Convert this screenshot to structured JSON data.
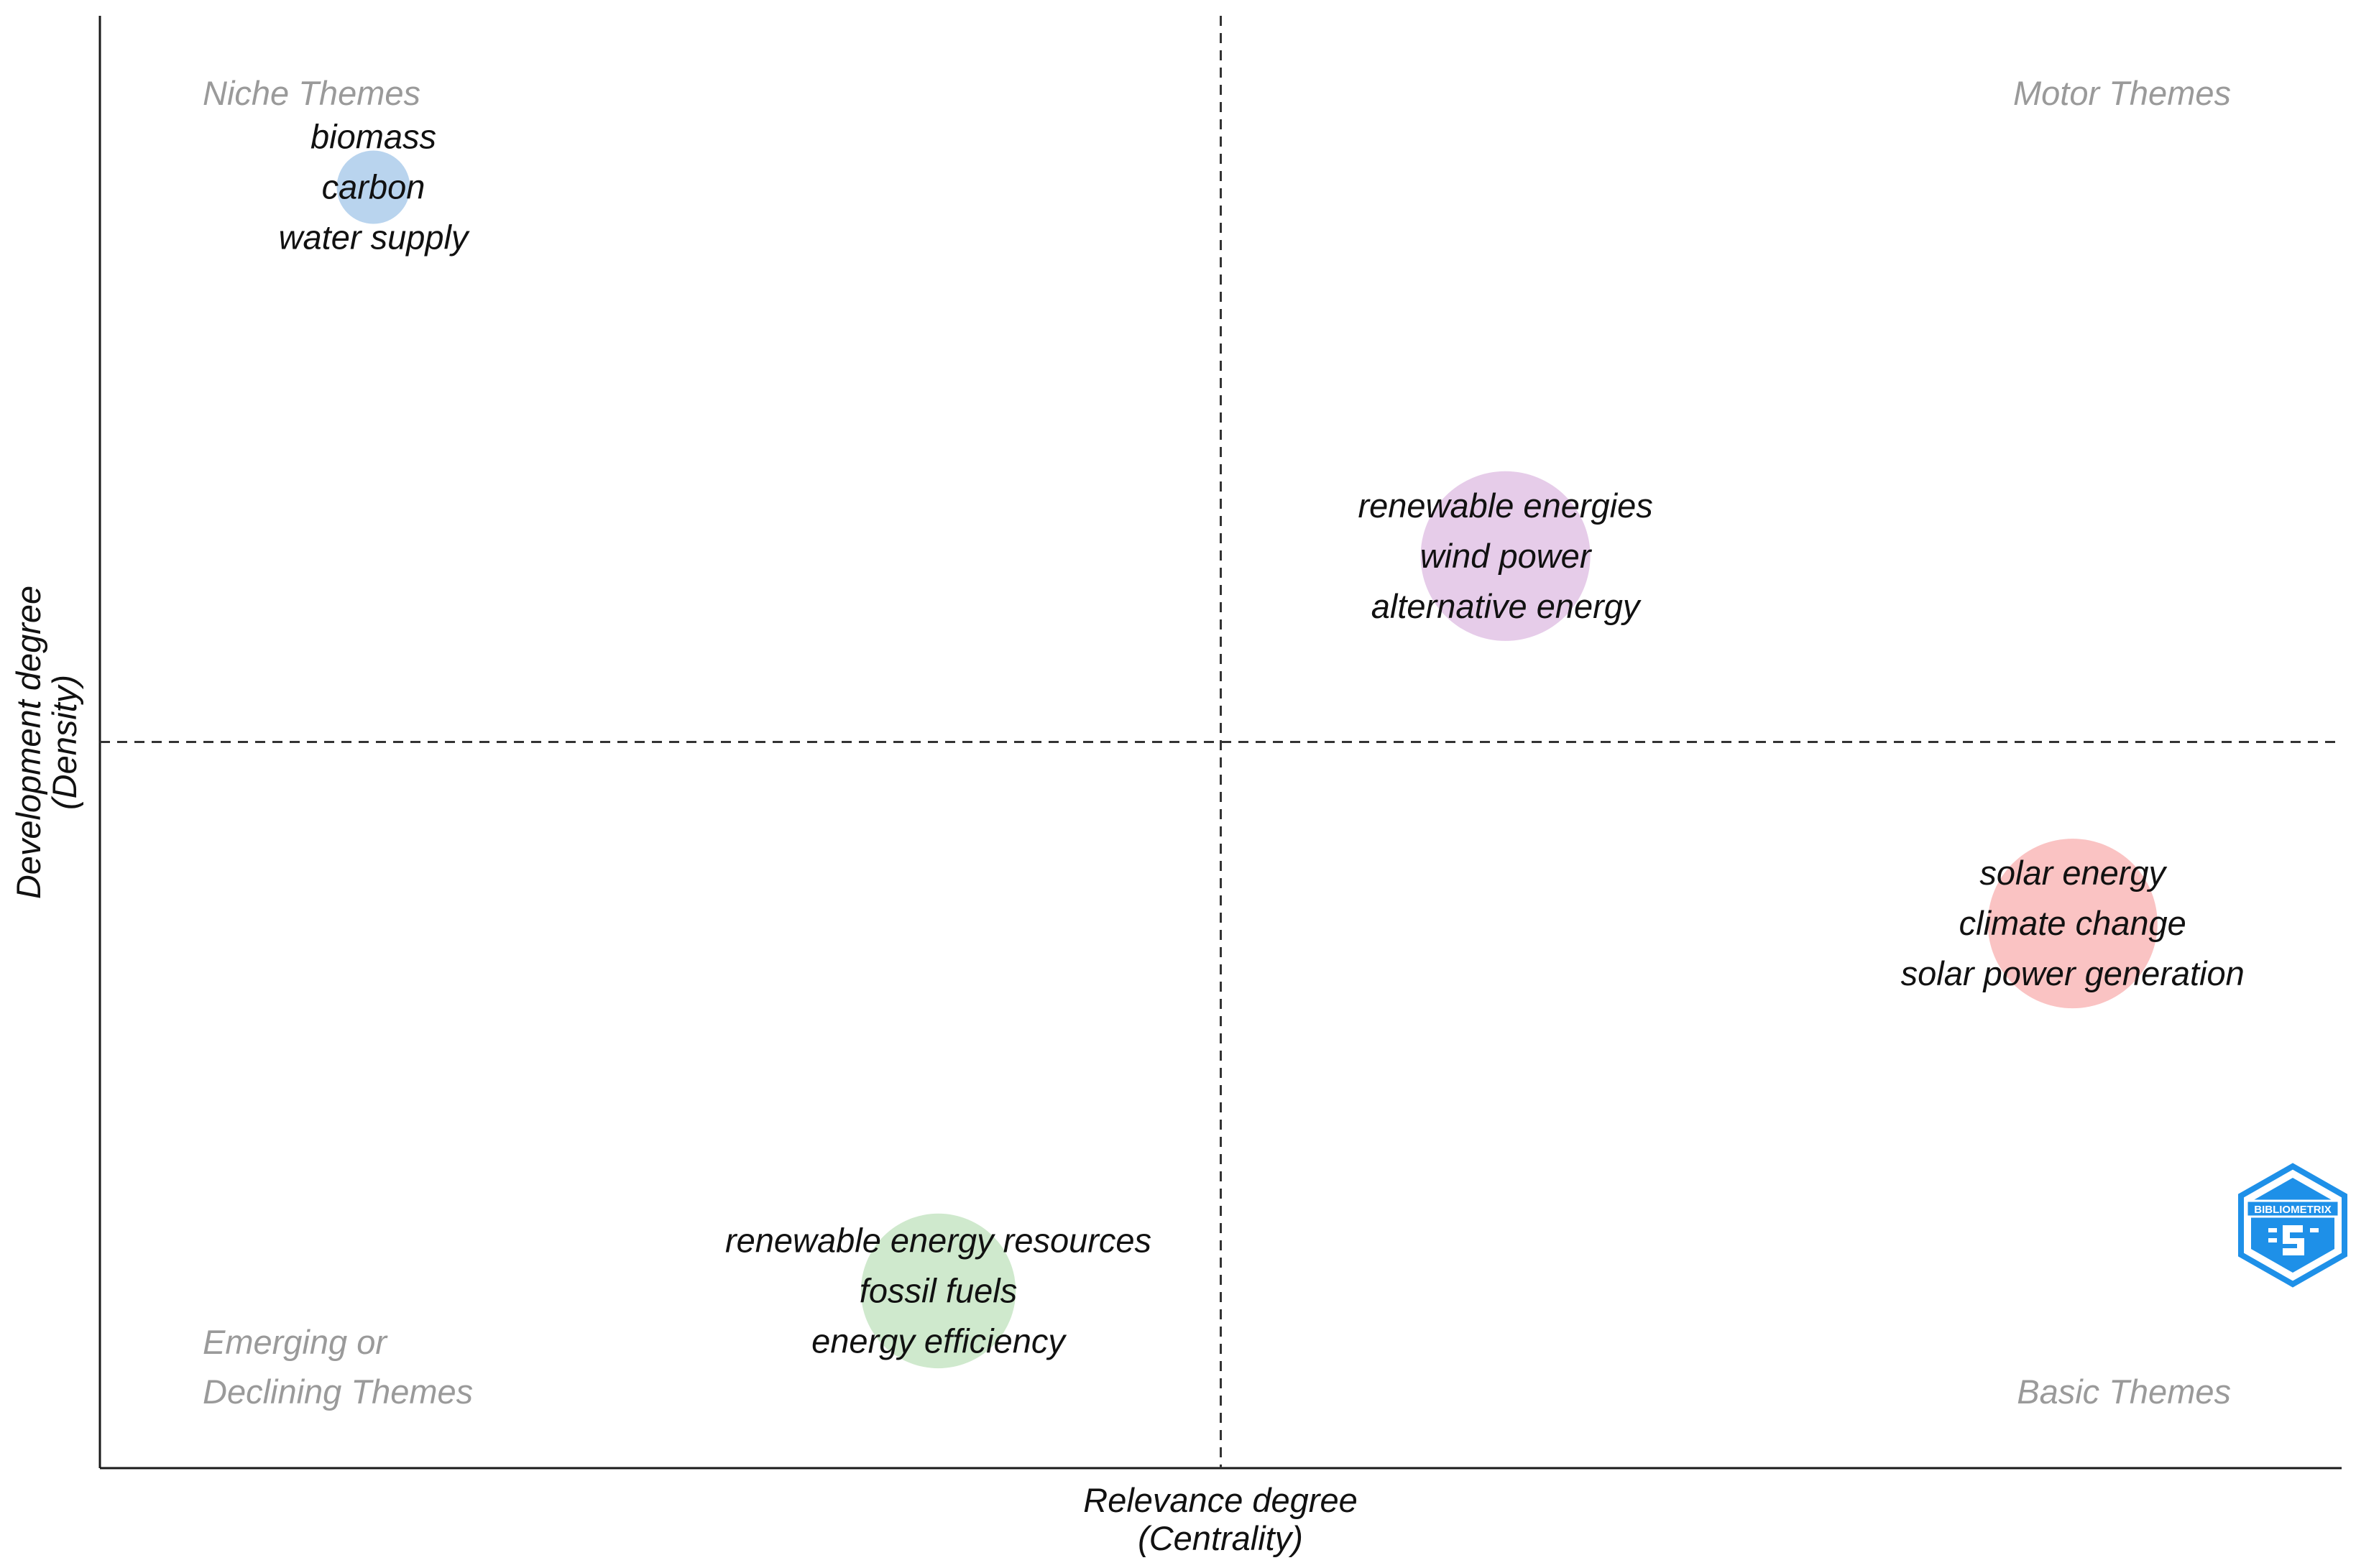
{
  "chart_data": {
    "type": "scatter",
    "subtype": "thematic-map",
    "xlabel": "Relevance degree",
    "xlabel_sub": "(Centrality)",
    "ylabel": "Development degree",
    "ylabel_sub": "(Density)",
    "xlim": [
      0,
      1
    ],
    "ylim": [
      0,
      1
    ],
    "x_divider": 0.5,
    "y_divider": 0.5,
    "grid": false,
    "quadrants": [
      {
        "id": "top-left",
        "lines": [
          "Niche Themes"
        ]
      },
      {
        "id": "top-right",
        "lines": [
          "Motor Themes"
        ]
      },
      {
        "id": "bottom-left",
        "lines": [
          "Emerging or",
          "Declining Themes"
        ]
      },
      {
        "id": "bottom-right",
        "lines": [
          "Basic Themes"
        ]
      }
    ],
    "clusters": [
      {
        "name": "biomass",
        "keywords": [
          "biomass",
          "carbon",
          "water supply"
        ],
        "x": 0.122,
        "y": 0.882,
        "size": 1,
        "color": "#b9d4ee"
      },
      {
        "name": "renewable energies",
        "keywords": [
          "renewable energies",
          "wind power",
          "alternative energy"
        ],
        "x": 0.627,
        "y": 0.628,
        "size": 10,
        "color": "#e6cce9"
      },
      {
        "name": "solar energy",
        "keywords": [
          "solar energy",
          "climate change",
          "solar power generation"
        ],
        "x": 0.88,
        "y": 0.375,
        "size": 10,
        "color": "#fac3c3"
      },
      {
        "name": "renewable energy resources",
        "keywords": [
          "renewable energy resources",
          "fossil fuels",
          "energy efficiency"
        ],
        "x": 0.374,
        "y": 0.122,
        "size": 8,
        "color": "#cfe9cd"
      }
    ],
    "logo": {
      "text": "BIBLIOMETRIX",
      "color": "#1e90e8"
    }
  }
}
